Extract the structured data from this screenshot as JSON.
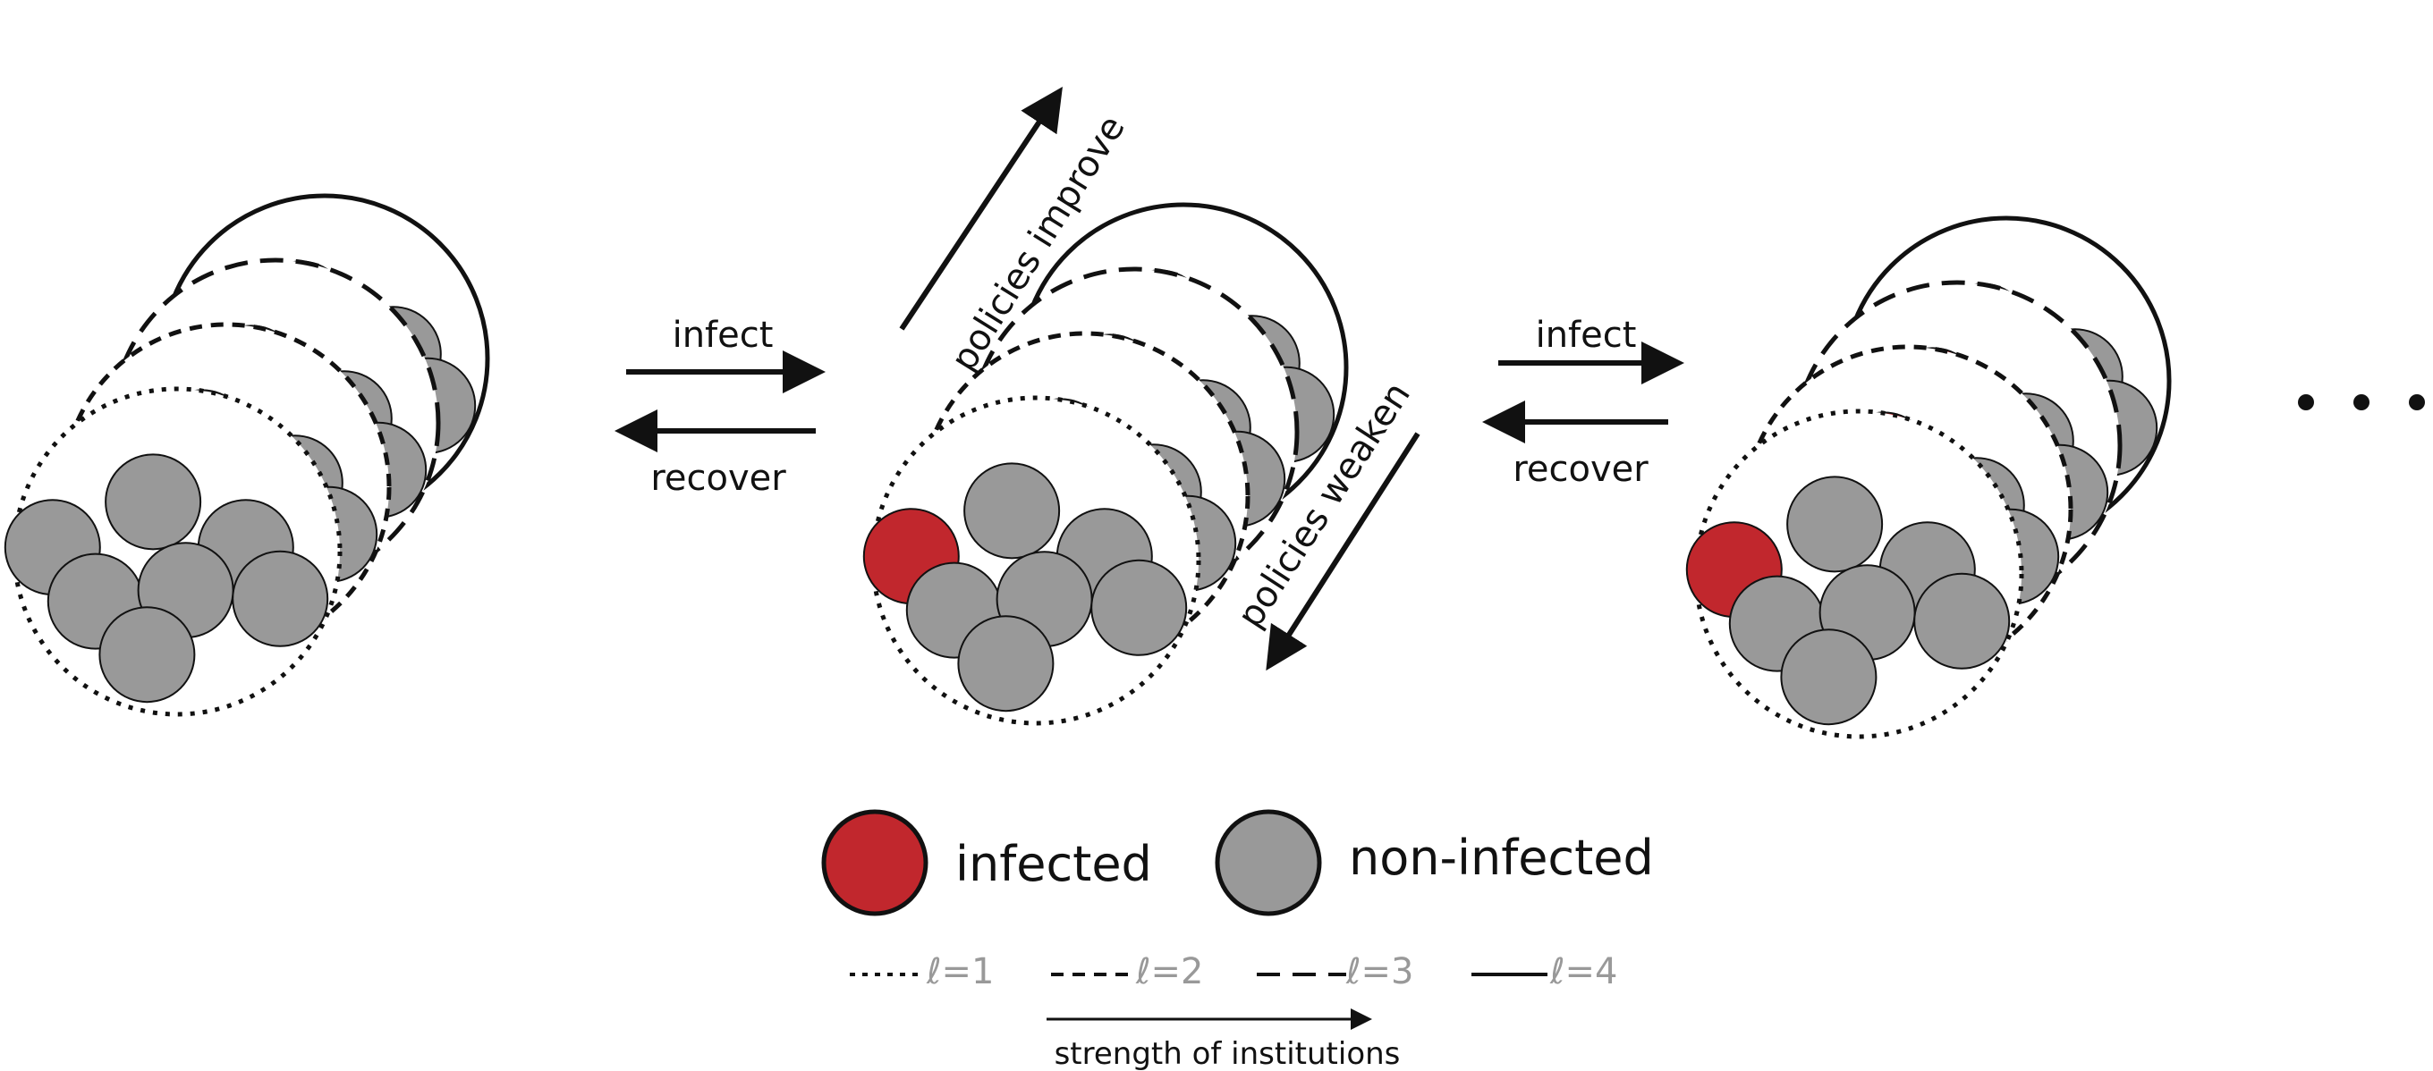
{
  "arrows": {
    "infect_1": "infect",
    "recover_1": "recover",
    "infect_2": "infect",
    "recover_2": "recover",
    "policies_improve": "policies improve",
    "policies_weaken": "policies weaken"
  },
  "legend": {
    "infected": "infected",
    "non_infected": "non-infected",
    "levels": [
      "ℓ=1",
      "ℓ=2",
      "ℓ=3",
      "ℓ=4"
    ],
    "strength": "strength of institutions"
  },
  "colors": {
    "infected": "#c1272d",
    "non_infected": "#999999",
    "outline": "#111111"
  },
  "clusters": [
    {
      "infected_by_level": [
        [],
        [],
        [],
        []
      ]
    },
    {
      "infected_by_level": [
        [
          0
        ],
        [
          0
        ],
        [
          0
        ],
        [
          0
        ]
      ]
    },
    {
      "infected_by_level": [
        [
          0
        ],
        [
          0,
          1
        ],
        [
          0,
          1
        ],
        [
          0,
          1
        ]
      ]
    }
  ]
}
